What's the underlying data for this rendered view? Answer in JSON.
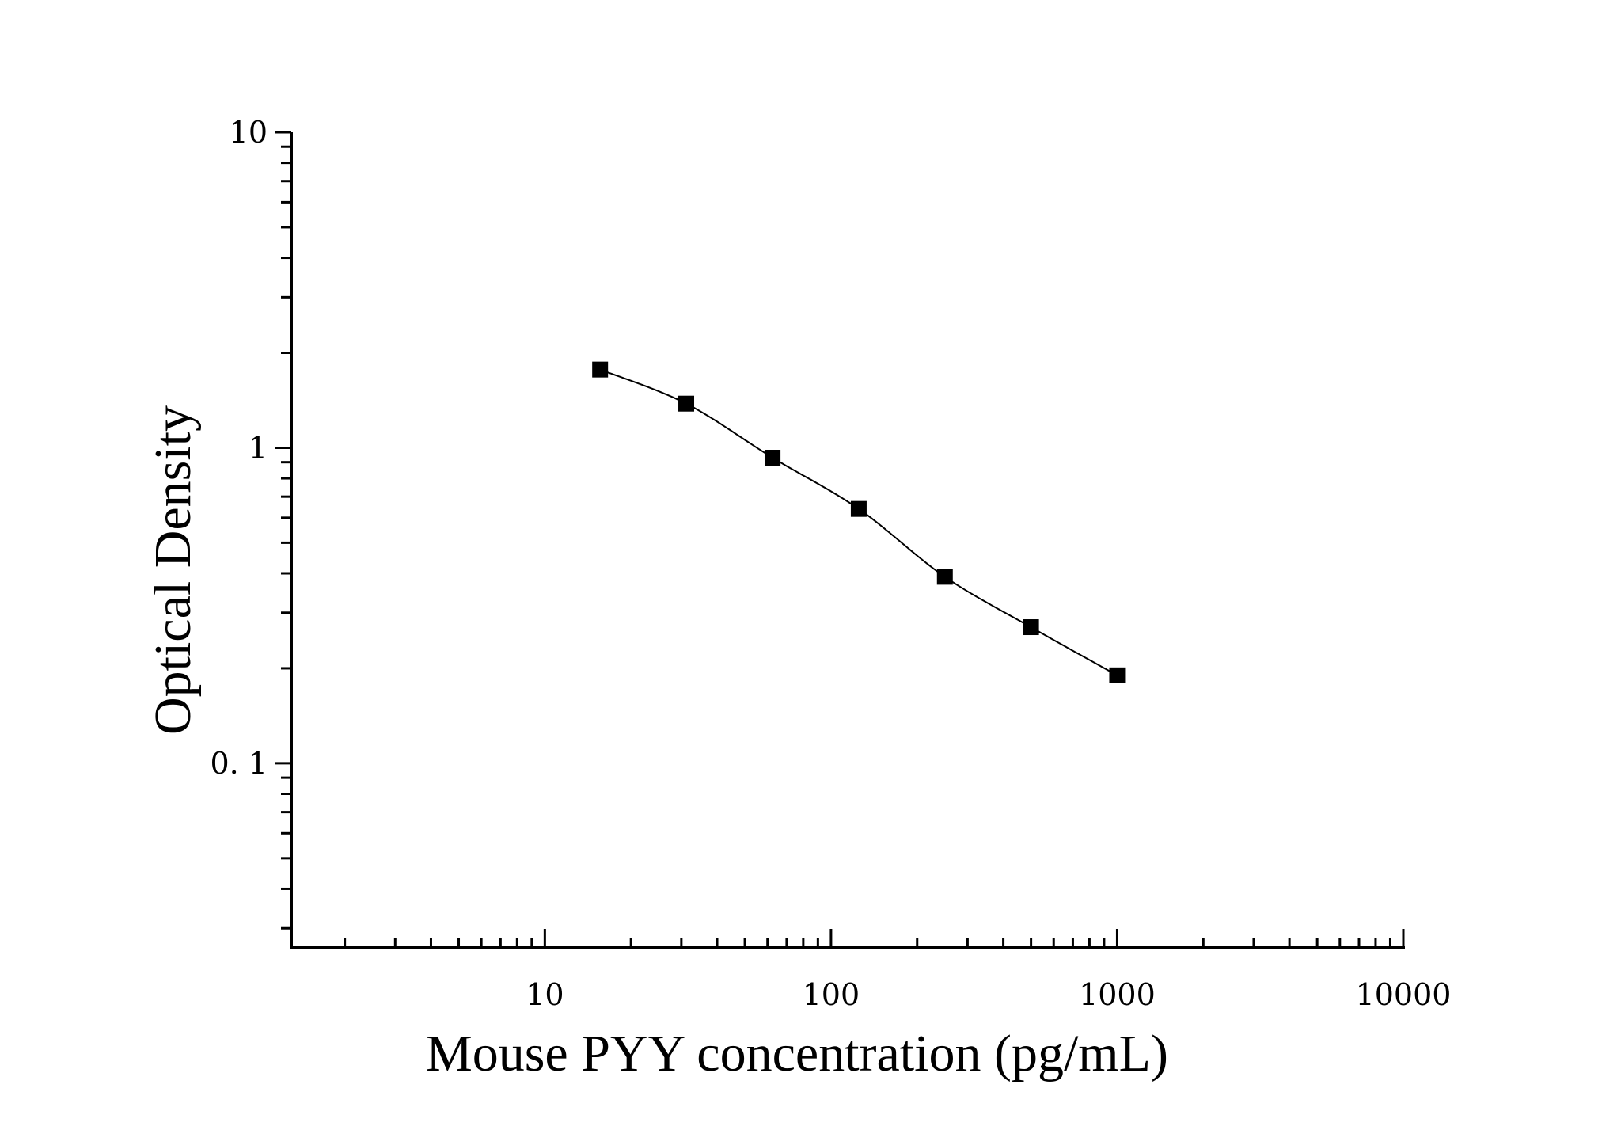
{
  "chart_data": {
    "type": "scatter",
    "xlabel": "Mouse PYY concentration (pg/mL)",
    "ylabel": "Optical Density",
    "x_scale": "log",
    "y_scale": "log",
    "xlim": [
      1.3,
      10000
    ],
    "ylim": [
      0.026,
      10
    ],
    "x_ticks": [
      10,
      100,
      1000,
      10000
    ],
    "x_tick_labels": [
      "10",
      "100",
      "1000",
      "10000"
    ],
    "y_ticks": [
      0.1,
      1,
      10
    ],
    "y_tick_labels": [
      "0. 1",
      "1",
      "10"
    ],
    "grid": false,
    "legend": "none",
    "marker": "square",
    "fit_curve": true,
    "colors": {
      "marker": "#000000",
      "curve": "#000000",
      "axis": "#000000"
    },
    "series": [
      {
        "x": [
          15.6,
          31.2,
          62.5,
          125,
          250,
          500,
          1000
        ],
        "y": [
          1.77,
          1.38,
          0.93,
          0.64,
          0.39,
          0.27,
          0.19
        ]
      }
    ]
  }
}
